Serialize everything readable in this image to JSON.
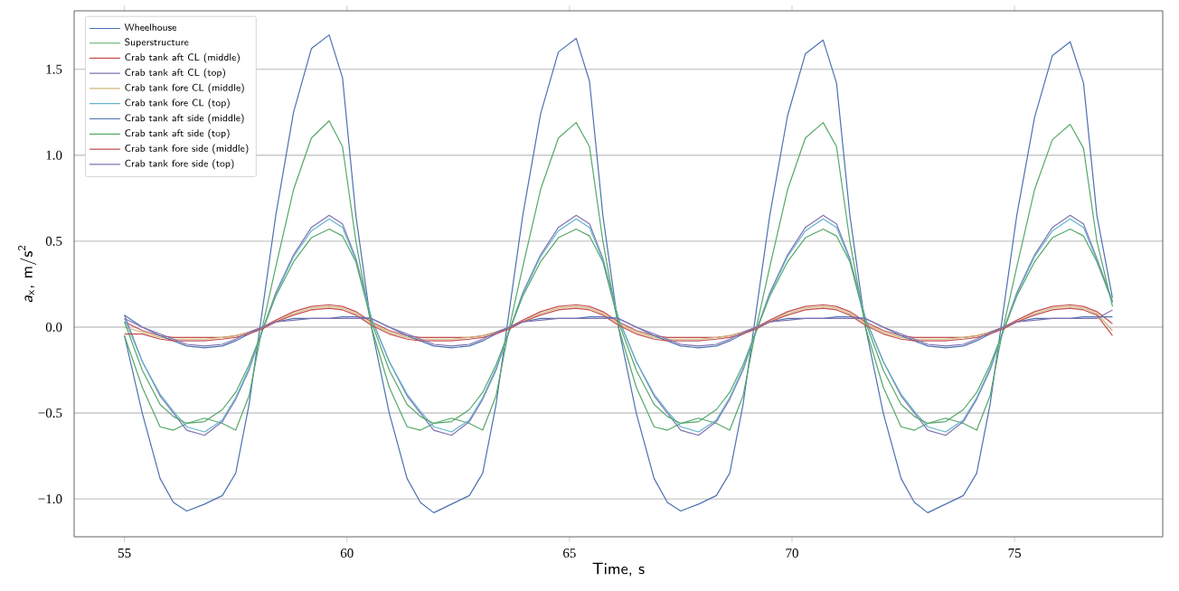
{
  "chart_data": {
    "type": "line",
    "xlabel": "Time, s",
    "ylabel": "*a*$_{x}$, m/s$^{2}$",
    "xlim": [
      53.87,
      78.33
    ],
    "ylim": [
      -1.22,
      1.84
    ],
    "xticks": [
      55,
      60,
      65,
      70,
      75
    ],
    "yticks": [
      {
        "value": -1.0,
        "label": "−1.0"
      },
      {
        "value": -0.5,
        "label": "−0.5"
      },
      {
        "value": 0.0,
        "label": "0.0"
      },
      {
        "value": 0.5,
        "label": "0.5"
      },
      {
        "value": 1.0,
        "label": "1.0"
      },
      {
        "value": 1.5,
        "label": "1.5"
      }
    ],
    "grid": "y",
    "legend": "top left",
    "marker": "none",
    "line_style": "solid",
    "x": [
      55.0,
      55.4,
      55.8,
      56.1,
      56.4,
      56.8,
      57.2,
      57.5,
      57.8,
      58.1,
      58.4,
      58.8,
      59.2,
      59.6,
      59.9,
      60.2,
      60.55,
      60.95,
      61.35,
      61.65,
      61.95,
      62.35,
      62.75,
      63.05,
      63.35,
      63.65,
      63.95,
      64.35,
      64.75,
      65.15,
      65.45,
      65.75,
      66.1,
      66.5,
      66.9,
      67.2,
      67.5,
      67.9,
      68.3,
      68.6,
      68.9,
      69.2,
      69.5,
      69.9,
      70.3,
      70.7,
      71.0,
      71.3,
      71.65,
      72.05,
      72.45,
      72.75,
      73.05,
      73.45,
      73.85,
      74.15,
      74.45,
      74.75,
      75.05,
      75.45,
      75.85,
      76.25,
      76.55,
      76.85,
      77.2
    ],
    "series": [
      {
        "name": "Wheelhouse",
        "color": "#4c72b0",
        "values": [
          -0.05,
          -0.5,
          -0.88,
          -1.02,
          -1.07,
          -1.03,
          -0.98,
          -0.85,
          -0.45,
          0.1,
          0.65,
          1.25,
          1.62,
          1.7,
          1.45,
          0.65,
          0.0,
          -0.5,
          -0.88,
          -1.02,
          -1.08,
          -1.03,
          -0.98,
          -0.85,
          -0.45,
          0.1,
          0.65,
          1.24,
          1.6,
          1.68,
          1.43,
          0.65,
          0.0,
          -0.5,
          -0.88,
          -1.02,
          -1.07,
          -1.03,
          -0.98,
          -0.85,
          -0.45,
          0.1,
          0.65,
          1.23,
          1.59,
          1.67,
          1.42,
          0.65,
          0.0,
          -0.5,
          -0.88,
          -1.02,
          -1.08,
          -1.03,
          -0.98,
          -0.85,
          -0.45,
          0.1,
          0.65,
          1.22,
          1.58,
          1.66,
          1.42,
          0.65,
          0.17
        ]
      },
      {
        "name": "Superstructure",
        "color": "#55a868",
        "values": [
          -0.05,
          -0.35,
          -0.58,
          -0.6,
          -0.56,
          -0.53,
          -0.56,
          -0.6,
          -0.4,
          0.0,
          0.35,
          0.8,
          1.1,
          1.2,
          1.05,
          0.5,
          0.0,
          -0.35,
          -0.58,
          -0.6,
          -0.56,
          -0.53,
          -0.56,
          -0.6,
          -0.4,
          0.0,
          0.35,
          0.8,
          1.1,
          1.19,
          1.05,
          0.5,
          0.0,
          -0.35,
          -0.58,
          -0.6,
          -0.56,
          -0.53,
          -0.56,
          -0.6,
          -0.4,
          0.0,
          0.35,
          0.8,
          1.1,
          1.19,
          1.05,
          0.5,
          0.0,
          -0.35,
          -0.58,
          -0.6,
          -0.56,
          -0.53,
          -0.56,
          -0.6,
          -0.4,
          0.0,
          0.35,
          0.8,
          1.09,
          1.18,
          1.04,
          0.5,
          0.12
        ]
      },
      {
        "name": "Crab tank aft CL (middle)",
        "color": "#c44e52",
        "values": [
          0.03,
          -0.02,
          -0.05,
          -0.06,
          -0.06,
          -0.06,
          -0.06,
          -0.05,
          -0.03,
          0.0,
          0.04,
          0.09,
          0.12,
          0.13,
          0.12,
          0.09,
          0.03,
          -0.02,
          -0.05,
          -0.06,
          -0.06,
          -0.06,
          -0.06,
          -0.05,
          -0.03,
          0.0,
          0.04,
          0.09,
          0.12,
          0.13,
          0.12,
          0.09,
          0.03,
          -0.02,
          -0.05,
          -0.06,
          -0.06,
          -0.06,
          -0.06,
          -0.05,
          -0.03,
          0.0,
          0.04,
          0.09,
          0.12,
          0.13,
          0.12,
          0.09,
          0.03,
          -0.02,
          -0.05,
          -0.06,
          -0.06,
          -0.06,
          -0.06,
          -0.05,
          -0.03,
          0.0,
          0.04,
          0.09,
          0.12,
          0.13,
          0.12,
          0.09,
          0.02
        ]
      },
      {
        "name": "Crab tank aft CL (top)",
        "color": "#8172b2",
        "values": [
          0.07,
          -0.2,
          -0.4,
          -0.5,
          -0.6,
          -0.63,
          -0.55,
          -0.42,
          -0.25,
          -0.02,
          0.2,
          0.42,
          0.58,
          0.65,
          0.6,
          0.4,
          0.05,
          -0.2,
          -0.4,
          -0.5,
          -0.6,
          -0.63,
          -0.55,
          -0.42,
          -0.25,
          -0.02,
          0.2,
          0.42,
          0.58,
          0.65,
          0.6,
          0.4,
          0.05,
          -0.2,
          -0.4,
          -0.5,
          -0.6,
          -0.63,
          -0.55,
          -0.42,
          -0.25,
          -0.02,
          0.2,
          0.42,
          0.58,
          0.65,
          0.6,
          0.4,
          0.05,
          -0.2,
          -0.4,
          -0.5,
          -0.6,
          -0.63,
          -0.55,
          -0.42,
          -0.25,
          -0.02,
          0.2,
          0.42,
          0.58,
          0.65,
          0.6,
          0.4,
          0.15
        ]
      },
      {
        "name": "Crab tank fore CL (middle)",
        "color": "#ccb974",
        "values": [
          0.0,
          -0.03,
          -0.06,
          -0.07,
          -0.07,
          -0.07,
          -0.06,
          -0.05,
          -0.03,
          0.0,
          0.03,
          0.08,
          0.11,
          0.12,
          0.11,
          0.08,
          0.02,
          -0.03,
          -0.06,
          -0.07,
          -0.07,
          -0.07,
          -0.06,
          -0.05,
          -0.03,
          0.0,
          0.03,
          0.08,
          0.11,
          0.12,
          0.11,
          0.08,
          0.02,
          -0.03,
          -0.06,
          -0.07,
          -0.07,
          -0.07,
          -0.06,
          -0.05,
          -0.03,
          0.0,
          0.03,
          0.08,
          0.11,
          0.12,
          0.11,
          0.08,
          0.02,
          -0.03,
          -0.06,
          -0.07,
          -0.07,
          -0.07,
          -0.06,
          -0.05,
          -0.03,
          0.0,
          0.03,
          0.08,
          0.11,
          0.12,
          0.11,
          0.08,
          -0.02
        ]
      },
      {
        "name": "Crab tank fore CL (top)",
        "color": "#64b5cd",
        "values": [
          0.05,
          -0.2,
          -0.39,
          -0.49,
          -0.58,
          -0.61,
          -0.54,
          -0.41,
          -0.24,
          -0.02,
          0.19,
          0.41,
          0.56,
          0.63,
          0.58,
          0.39,
          0.05,
          -0.2,
          -0.39,
          -0.49,
          -0.58,
          -0.61,
          -0.54,
          -0.41,
          -0.24,
          -0.02,
          0.19,
          0.41,
          0.56,
          0.63,
          0.58,
          0.39,
          0.05,
          -0.2,
          -0.39,
          -0.49,
          -0.58,
          -0.61,
          -0.54,
          -0.41,
          -0.24,
          -0.02,
          0.19,
          0.41,
          0.56,
          0.63,
          0.58,
          0.39,
          0.05,
          -0.2,
          -0.39,
          -0.49,
          -0.58,
          -0.61,
          -0.54,
          -0.41,
          -0.24,
          -0.02,
          0.19,
          0.41,
          0.56,
          0.63,
          0.58,
          0.39,
          0.14
        ]
      },
      {
        "name": "Crab tank aft side (middle)",
        "color": "#4c72b0",
        "values": [
          0.07,
          0.0,
          -0.05,
          -0.08,
          -0.11,
          -0.12,
          -0.11,
          -0.08,
          -0.04,
          0.0,
          0.03,
          0.05,
          0.05,
          0.05,
          0.06,
          0.06,
          0.05,
          0.0,
          -0.05,
          -0.08,
          -0.11,
          -0.12,
          -0.11,
          -0.08,
          -0.04,
          0.0,
          0.03,
          0.05,
          0.05,
          0.05,
          0.06,
          0.06,
          0.05,
          0.0,
          -0.05,
          -0.08,
          -0.11,
          -0.12,
          -0.11,
          -0.08,
          -0.04,
          0.0,
          0.03,
          0.05,
          0.05,
          0.05,
          0.06,
          0.06,
          0.05,
          0.0,
          -0.05,
          -0.08,
          -0.11,
          -0.12,
          -0.11,
          -0.08,
          -0.04,
          0.0,
          0.03,
          0.05,
          0.05,
          0.05,
          0.06,
          0.06,
          0.06
        ]
      },
      {
        "name": "Crab tank aft side (top)",
        "color": "#55a868",
        "values": [
          0.03,
          -0.25,
          -0.45,
          -0.52,
          -0.56,
          -0.55,
          -0.48,
          -0.38,
          -0.22,
          -0.02,
          0.18,
          0.38,
          0.52,
          0.57,
          0.53,
          0.38,
          0.03,
          -0.25,
          -0.45,
          -0.52,
          -0.56,
          -0.55,
          -0.48,
          -0.38,
          -0.22,
          -0.02,
          0.18,
          0.38,
          0.52,
          0.57,
          0.53,
          0.38,
          0.03,
          -0.25,
          -0.45,
          -0.52,
          -0.56,
          -0.55,
          -0.48,
          -0.38,
          -0.22,
          -0.02,
          0.18,
          0.38,
          0.52,
          0.57,
          0.53,
          0.38,
          0.03,
          -0.25,
          -0.45,
          -0.52,
          -0.56,
          -0.55,
          -0.48,
          -0.38,
          -0.22,
          -0.02,
          0.18,
          0.38,
          0.52,
          0.57,
          0.53,
          0.38,
          0.15
        ]
      },
      {
        "name": "Crab tank fore side (middle)",
        "color": "#c44e52",
        "values": [
          -0.04,
          -0.04,
          -0.07,
          -0.08,
          -0.08,
          -0.08,
          -0.07,
          -0.06,
          -0.04,
          -0.01,
          0.03,
          0.07,
          0.1,
          0.11,
          0.1,
          0.07,
          0.01,
          -0.04,
          -0.07,
          -0.08,
          -0.08,
          -0.08,
          -0.07,
          -0.06,
          -0.04,
          -0.01,
          0.03,
          0.07,
          0.1,
          0.11,
          0.1,
          0.07,
          0.01,
          -0.04,
          -0.07,
          -0.08,
          -0.08,
          -0.08,
          -0.07,
          -0.06,
          -0.04,
          -0.01,
          0.03,
          0.07,
          0.1,
          0.11,
          0.1,
          0.07,
          0.01,
          -0.04,
          -0.07,
          -0.08,
          -0.08,
          -0.08,
          -0.07,
          -0.06,
          -0.04,
          -0.01,
          0.03,
          0.07,
          0.1,
          0.11,
          0.1,
          0.07,
          -0.05
        ]
      },
      {
        "name": "Crab tank fore side (top)",
        "color": "#8172b2",
        "values": [
          0.05,
          0.0,
          -0.04,
          -0.07,
          -0.1,
          -0.11,
          -0.1,
          -0.07,
          -0.03,
          0.0,
          0.03,
          0.04,
          0.05,
          0.05,
          0.05,
          0.05,
          0.05,
          0.0,
          -0.04,
          -0.07,
          -0.1,
          -0.11,
          -0.1,
          -0.07,
          -0.03,
          0.0,
          0.03,
          0.04,
          0.05,
          0.05,
          0.05,
          0.05,
          0.05,
          0.0,
          -0.04,
          -0.07,
          -0.1,
          -0.11,
          -0.1,
          -0.07,
          -0.03,
          0.0,
          0.03,
          0.04,
          0.05,
          0.05,
          0.05,
          0.05,
          0.05,
          0.0,
          -0.04,
          -0.07,
          -0.1,
          -0.11,
          -0.1,
          -0.07,
          -0.03,
          0.0,
          0.03,
          0.04,
          0.05,
          0.05,
          0.05,
          0.05,
          0.1
        ]
      }
    ]
  }
}
